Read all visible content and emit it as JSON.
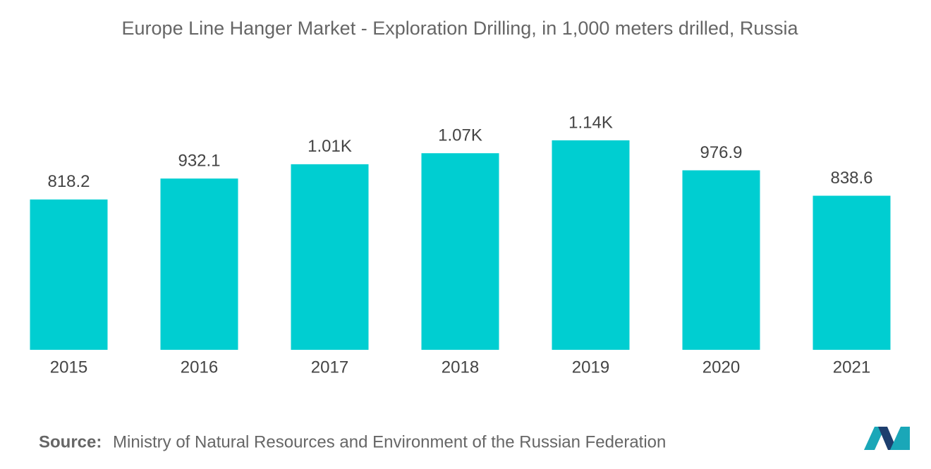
{
  "chart_data": {
    "type": "bar",
    "title": "Europe Line Hanger Market - Exploration Drilling, in 1,000 meters drilled, Russia",
    "categories": [
      "2015",
      "2016",
      "2017",
      "2018",
      "2019",
      "2020",
      "2021"
    ],
    "values": [
      818.2,
      932.1,
      1010,
      1070,
      1140,
      976.9,
      838.6
    ],
    "value_labels": [
      "818.2",
      "932.1",
      "1.01K",
      "1.07K",
      "1.14K",
      "976.9",
      "838.6"
    ],
    "color": "#00ced1",
    "source_label": "Source:",
    "source": "Ministry of Natural Resources and Environment of the Russian Federation"
  }
}
